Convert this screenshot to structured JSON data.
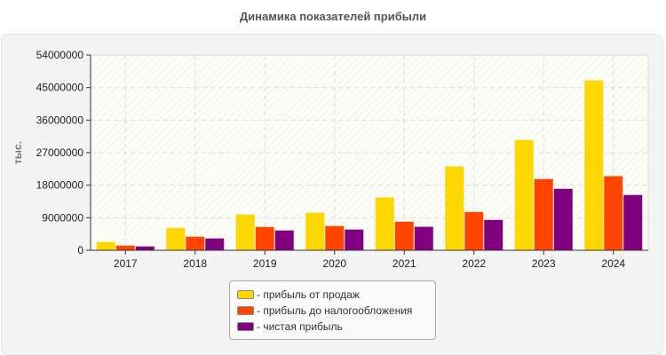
{
  "chart_data": {
    "type": "bar",
    "title": "Динамика показателей прибыли",
    "ylabel": "тыс.",
    "xlabel": "",
    "ylim": [
      0,
      54000000
    ],
    "yticks": [
      "0",
      "9000000",
      "18000000",
      "27000000",
      "36000000",
      "45000000",
      "54000000"
    ],
    "grid": true,
    "legend_position": "bottom",
    "categories": [
      "2017",
      "2018",
      "2019",
      "2020",
      "2021",
      "2022",
      "2023",
      "2024"
    ],
    "series": [
      {
        "name": "- прибыль от продаж",
        "color": "#FFD700",
        "values": [
          2300000,
          6200000,
          9900000,
          10400000,
          14600000,
          23200000,
          30500000,
          47000000
        ]
      },
      {
        "name": "- прибыль до налогообложения",
        "color": "#FF4500",
        "values": [
          1300000,
          3760000,
          6460000,
          6700000,
          7900000,
          10600000,
          19700000,
          20500000
        ]
      },
      {
        "name": "- чистая прибыль",
        "color": "#800080",
        "values": [
          1060000,
          3270000,
          5480000,
          5730000,
          6500000,
          8400000,
          17000000,
          15300000
        ]
      }
    ]
  }
}
